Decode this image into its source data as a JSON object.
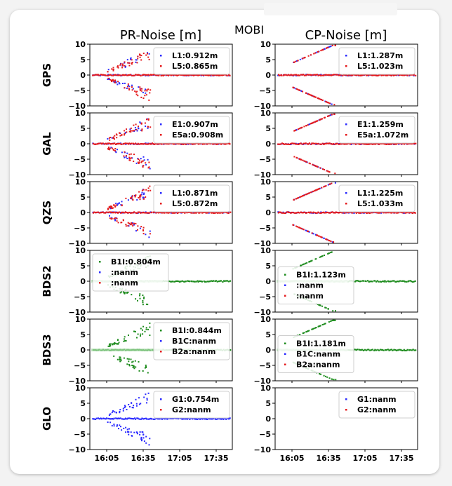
{
  "title": "MOBI",
  "column_titles": [
    "PR-Noise [m]",
    "CP-Noise [m]"
  ],
  "chart_data": {
    "type": "scatter",
    "y_range": [
      -10,
      10
    ],
    "y_ticks": [
      10,
      5,
      0,
      -5,
      -10
    ],
    "x_ticks": [
      "16:05",
      "16:35",
      "17:05",
      "17:35"
    ],
    "grid": false,
    "rows": [
      {
        "system": "GPS",
        "pr": {
          "legend_loc": "upper-right",
          "series": [
            {
              "label": "L1:0.912m",
              "color": "#2b2bff"
            },
            {
              "label": "L5:0.865m",
              "color": "#e41a1c"
            }
          ]
        },
        "cp": {
          "legend_loc": "upper-right",
          "series": [
            {
              "label": "L1:1.287m",
              "color": "#2b2bff"
            },
            {
              "label": "L5:1.023m",
              "color": "#e41a1c"
            }
          ]
        }
      },
      {
        "system": "GAL",
        "pr": {
          "legend_loc": "upper-right",
          "series": [
            {
              "label": "E1:0.907m",
              "color": "#2b2bff"
            },
            {
              "label": "E5a:0.908m",
              "color": "#e41a1c"
            }
          ]
        },
        "cp": {
          "legend_loc": "upper-right",
          "series": [
            {
              "label": "E1:1.259m",
              "color": "#2b2bff"
            },
            {
              "label": "E5a:1.072m",
              "color": "#e41a1c"
            }
          ]
        }
      },
      {
        "system": "QZS",
        "pr": {
          "legend_loc": "upper-right",
          "series": [
            {
              "label": "L1:0.871m",
              "color": "#2b2bff"
            },
            {
              "label": "L5:0.872m",
              "color": "#e41a1c"
            }
          ]
        },
        "cp": {
          "legend_loc": "upper-right",
          "series": [
            {
              "label": "L1:1.225m",
              "color": "#2b2bff"
            },
            {
              "label": "L5:1.033m",
              "color": "#e41a1c"
            }
          ]
        }
      },
      {
        "system": "BDS2",
        "pr": {
          "legend_loc": "upper-left",
          "series": [
            {
              "label": "B1I:0.804m",
              "color": "#1e8c1e"
            },
            {
              "label": ":nanm",
              "color": "#2b2bff"
            },
            {
              "label": ":nanm",
              "color": "#e41a1c"
            }
          ]
        },
        "cp": {
          "legend_loc": "center-left",
          "series": [
            {
              "label": "B1I:1.123m",
              "color": "#1e8c1e"
            },
            {
              "label": ":nanm",
              "color": "#2b2bff"
            },
            {
              "label": ":nanm",
              "color": "#e41a1c"
            }
          ]
        }
      },
      {
        "system": "BDS3",
        "pr": {
          "legend_loc": "upper-right",
          "series": [
            {
              "label": "B1I:0.844m",
              "color": "#1e8c1e"
            },
            {
              "label": "B1C:nanm",
              "color": "#2b2bff"
            },
            {
              "label": "B2a:nanm",
              "color": "#e41a1c"
            }
          ]
        },
        "cp": {
          "legend_loc": "center-left",
          "series": [
            {
              "label": "B1I:1.181m",
              "color": "#1e8c1e"
            },
            {
              "label": "B1C:nanm",
              "color": "#2b2bff"
            },
            {
              "label": "B2a:nanm",
              "color": "#e41a1c"
            }
          ]
        }
      },
      {
        "system": "GLO",
        "pr": {
          "legend_loc": "upper-right",
          "series": [
            {
              "label": "G1:0.754m",
              "color": "#2b2bff"
            },
            {
              "label": "G2:nanm",
              "color": "#e41a1c"
            }
          ]
        },
        "cp": {
          "legend_loc": "upper-right",
          "series": [
            {
              "label": "G1:nanm",
              "color": "#2b2bff"
            },
            {
              "label": "G2:nanm",
              "color": "#e41a1c"
            }
          ]
        }
      }
    ]
  }
}
